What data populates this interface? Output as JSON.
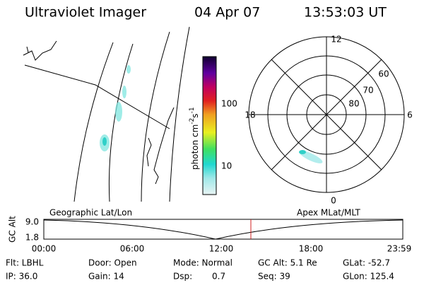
{
  "header": {
    "instrument": "Ultraviolet Imager",
    "date": "04 Apr 07",
    "time": "13:53:03 UT"
  },
  "colorbar": {
    "label": "photon cm",
    "label_exp1": "-2",
    "label_mid": "s",
    "label_exp2": "-1",
    "ticks": [
      "100",
      "10"
    ]
  },
  "polar": {
    "mlt_labels": [
      "12",
      "18",
      "6",
      "0"
    ],
    "lat_labels": [
      "60",
      "70",
      "80"
    ]
  },
  "timeline": {
    "left_label": "Geographic Lat/Lon",
    "right_label": "Apex MLat/MLT",
    "y_label": "GC Alt",
    "y_ticks": [
      "9.0",
      "1.8"
    ],
    "x_ticks": [
      "00:00",
      "06:00",
      "12:00",
      "18:00",
      "23:59"
    ]
  },
  "info": {
    "rows": [
      [
        "Flt: LBHL",
        "Door: Open",
        "Mode: Normal",
        "GC Alt: 5.1 Re",
        "GLat: -52.7"
      ],
      [
        "IP: 36.0",
        "Gain: 14",
        "Dsp:",
        "0.7",
        "Seq: 39",
        "GLon: 125.4"
      ]
    ]
  }
}
